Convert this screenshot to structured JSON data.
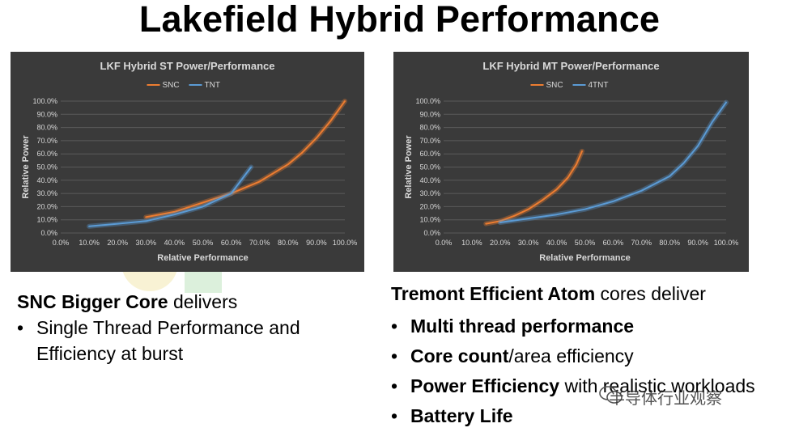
{
  "slide": {
    "title": "Lakefield Hybrid Performance"
  },
  "chart_data": [
    {
      "type": "line",
      "title": "LKF Hybrid ST Power/Performance",
      "xlabel": "Relative Performance",
      "ylabel": "Relative Power",
      "xlim": [
        0,
        100
      ],
      "ylim": [
        0,
        100
      ],
      "x_ticks": [
        "0.0%",
        "10.0%",
        "20.0%",
        "30.0%",
        "40.0%",
        "50.0%",
        "60.0%",
        "70.0%",
        "80.0%",
        "90.0%",
        "100.0%"
      ],
      "y_ticks": [
        "0.0%",
        "10.0%",
        "20.0%",
        "30.0%",
        "40.0%",
        "50.0%",
        "60.0%",
        "70.0%",
        "80.0%",
        "90.0%",
        "100.0%"
      ],
      "legend_position": "top",
      "grid": true,
      "series": [
        {
          "name": "SNC",
          "color": "#ed7d31",
          "x": [
            30,
            40,
            50,
            60,
            70,
            80,
            85,
            90,
            95,
            100
          ],
          "y": [
            12,
            16,
            23,
            30,
            39,
            52,
            61,
            72,
            85,
            100
          ]
        },
        {
          "name": "TNT",
          "color": "#5b9bd5",
          "x": [
            10,
            20,
            30,
            40,
            50,
            60,
            67
          ],
          "y": [
            5,
            7,
            9,
            14,
            20,
            30,
            50
          ]
        }
      ]
    },
    {
      "type": "line",
      "title": "LKF Hybrid MT Power/Performance",
      "xlabel": "Relative Performance",
      "ylabel": "Relative Power",
      "xlim": [
        0,
        100
      ],
      "ylim": [
        0,
        100
      ],
      "x_ticks": [
        "0.0%",
        "10.0%",
        "20.0%",
        "30.0%",
        "40.0%",
        "50.0%",
        "60.0%",
        "70.0%",
        "80.0%",
        "90.0%",
        "100.0%"
      ],
      "y_ticks": [
        "0.0%",
        "10.0%",
        "20.0%",
        "30.0%",
        "40.0%",
        "50.0%",
        "60.0%",
        "70.0%",
        "80.0%",
        "90.0%",
        "100.0%"
      ],
      "legend_position": "top",
      "grid": true,
      "series": [
        {
          "name": "SNC",
          "color": "#ed7d31",
          "x": [
            15,
            20,
            25,
            30,
            35,
            40,
            44,
            47,
            49
          ],
          "y": [
            7,
            9,
            13,
            18,
            25,
            33,
            42,
            52,
            62
          ]
        },
        {
          "name": "4TNT",
          "color": "#5b9bd5",
          "x": [
            20,
            30,
            40,
            50,
            60,
            70,
            80,
            85,
            90,
            95,
            100
          ],
          "y": [
            8,
            11,
            14,
            18,
            24,
            32,
            43,
            53,
            66,
            84,
            99
          ]
        }
      ]
    }
  ],
  "left_text": {
    "heading_bold": "SNC Bigger Core",
    "heading_rest": " delivers",
    "bullets": [
      {
        "bold": "",
        "rest": "Single Thread Performance and Efficiency at burst"
      }
    ]
  },
  "right_text": {
    "heading_bold": "Tremont Efficient Atom",
    "heading_rest": " cores deliver",
    "bullets": [
      {
        "bold": "Multi thread performance",
        "rest": ""
      },
      {
        "bold": "Core count",
        "rest": "/area efficiency"
      },
      {
        "bold": "Power Efficiency",
        "rest": " with realistic workloads"
      },
      {
        "bold": "Battery Life",
        "rest": ""
      }
    ]
  },
  "bullet_char": "•",
  "watermark": {
    "text": "半导体行业观察",
    "icon": "wechat-icon"
  }
}
